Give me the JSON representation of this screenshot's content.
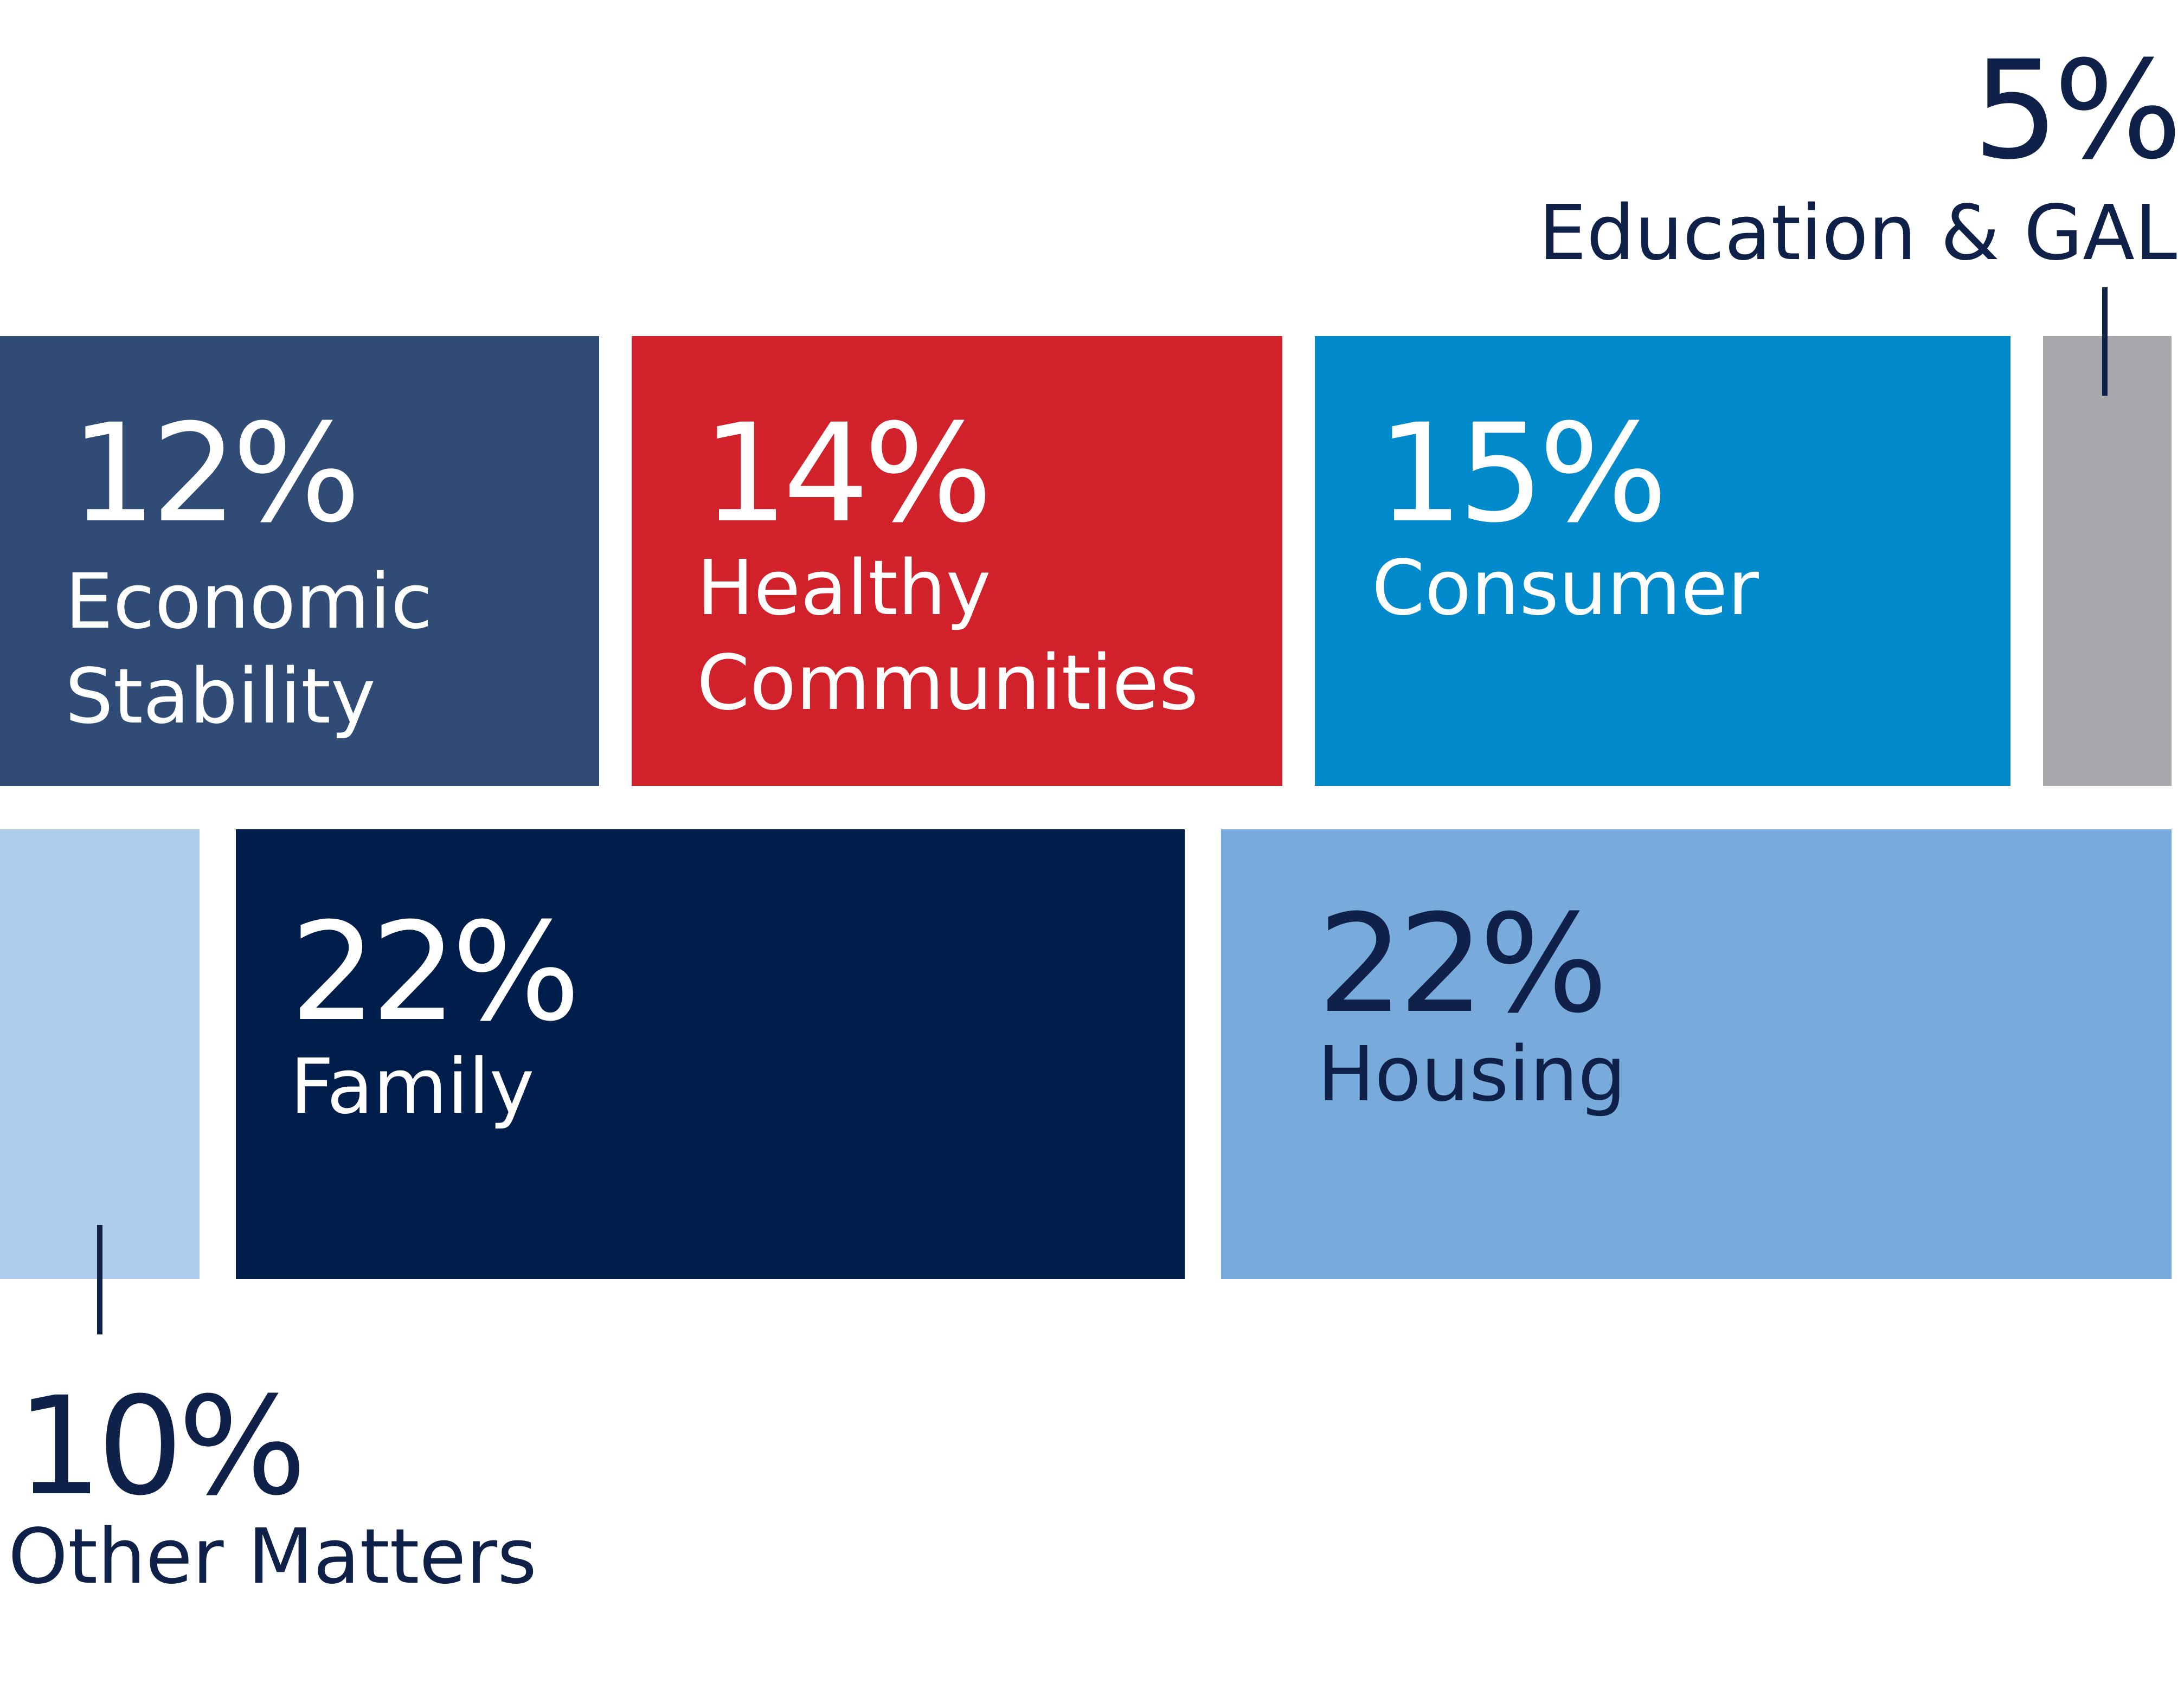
{
  "chart_data": {
    "type": "treemap",
    "unit": "%",
    "categories": [
      {
        "name": "Economic Stability",
        "label_lines": [
          "Economic",
          "Stability"
        ],
        "value": 12,
        "value_label": "12%",
        "color": "#304c76",
        "text_color": "#ffffff"
      },
      {
        "name": "Healthy Communities",
        "label_lines": [
          "Healthy",
          "Communities"
        ],
        "value": 14,
        "value_label": "14%",
        "color": "#d1222b",
        "text_color": "#ffffff"
      },
      {
        "name": "Consumer",
        "label_lines": [
          "Consumer"
        ],
        "value": 15,
        "value_label": "15%",
        "color": "#0089cb",
        "text_color": "#ffffff"
      },
      {
        "name": "Education & GAL",
        "label_lines": [
          "Education & GAL"
        ],
        "value": 5,
        "value_label": "5%",
        "color": "#a8a9ad",
        "text_color": "#0f2049"
      },
      {
        "name": "Other Matters",
        "label_lines": [
          "Other Matters"
        ],
        "value": 10,
        "value_label": "10%",
        "color": "#adcbea",
        "text_color": "#0f2049"
      },
      {
        "name": "Family",
        "label_lines": [
          "Family"
        ],
        "value": 22,
        "value_label": "22%",
        "color": "#001e4b",
        "text_color": "#ffffff"
      },
      {
        "name": "Housing",
        "label_lines": [
          "Housing"
        ],
        "value": 22,
        "value_label": "22%",
        "color": "#78abdb",
        "text_color": "#0f2049"
      }
    ],
    "leader_line_color": "#0f2049"
  }
}
